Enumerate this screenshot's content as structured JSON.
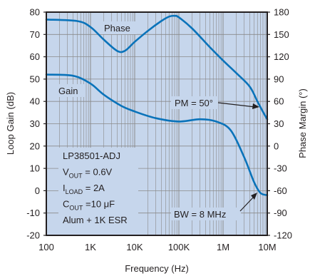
{
  "chart_data": {
    "type": "line",
    "xlabel": "Frequency (Hz)",
    "ylabel_left": "Loop Gain (dB)",
    "ylabel_right": "Phase Margin (°)",
    "x_scale": "log",
    "x_range": [
      100,
      10000000
    ],
    "y_left_range": [
      -20,
      80
    ],
    "y_right_range": [
      -120,
      180
    ],
    "x_ticks": [
      {
        "value": 100,
        "label": "100"
      },
      {
        "value": 1000,
        "label": "1K"
      },
      {
        "value": 10000,
        "label": "10K"
      },
      {
        "value": 100000,
        "label": "100K"
      },
      {
        "value": 1000000,
        "label": "1M"
      },
      {
        "value": 10000000,
        "label": "10M"
      }
    ],
    "y_left_ticks": [
      {
        "value": 80,
        "label": "80"
      },
      {
        "value": 70,
        "label": "70"
      },
      {
        "value": 60,
        "label": "60"
      },
      {
        "value": 50,
        "label": "50"
      },
      {
        "value": 40,
        "label": "40"
      },
      {
        "value": 30,
        "label": "30"
      },
      {
        "value": 20,
        "label": "20"
      },
      {
        "value": 10,
        "label": "10"
      },
      {
        "value": 0,
        "label": "0"
      },
      {
        "value": -10,
        "label": "-10"
      },
      {
        "value": -20,
        "label": "-20"
      }
    ],
    "y_right_ticks": [
      {
        "value": 180,
        "label": "180"
      },
      {
        "value": 150,
        "label": "150"
      },
      {
        "value": 120,
        "label": "120"
      },
      {
        "value": 90,
        "label": "90"
      },
      {
        "value": 60,
        "label": "60"
      },
      {
        "value": 30,
        "label": "30"
      },
      {
        "value": 0,
        "label": "0"
      },
      {
        "value": -30,
        "label": "-30"
      },
      {
        "value": -60,
        "label": "-60"
      },
      {
        "value": -90,
        "label": "-90"
      },
      {
        "value": -120,
        "label": "-120"
      }
    ],
    "grid": true,
    "series": [
      {
        "name": "Phase",
        "axis": "right",
        "color": "#0a73ba",
        "points": [
          {
            "x": 100,
            "y": 170
          },
          {
            "x": 500,
            "y": 168
          },
          {
            "x": 1000,
            "y": 160
          },
          {
            "x": 2000,
            "y": 143
          },
          {
            "x": 4000,
            "y": 128
          },
          {
            "x": 6000,
            "y": 128
          },
          {
            "x": 10000,
            "y": 140
          },
          {
            "x": 20000,
            "y": 155
          },
          {
            "x": 40000,
            "y": 168
          },
          {
            "x": 60000,
            "y": 174
          },
          {
            "x": 80000,
            "y": 175
          },
          {
            "x": 100000,
            "y": 173
          },
          {
            "x": 200000,
            "y": 158
          },
          {
            "x": 500000,
            "y": 133
          },
          {
            "x": 1000000,
            "y": 115
          },
          {
            "x": 2000000,
            "y": 98
          },
          {
            "x": 4000000,
            "y": 80
          },
          {
            "x": 6000000,
            "y": 60
          },
          {
            "x": 8000000,
            "y": 46
          },
          {
            "x": 10000000,
            "y": 36
          }
        ]
      },
      {
        "name": "Gain",
        "axis": "left",
        "color": "#0a73ba",
        "points": [
          {
            "x": 100,
            "y": 52
          },
          {
            "x": 400,
            "y": 51.5
          },
          {
            "x": 1000,
            "y": 48
          },
          {
            "x": 2000,
            "y": 43
          },
          {
            "x": 5000,
            "y": 38
          },
          {
            "x": 10000,
            "y": 35.5
          },
          {
            "x": 30000,
            "y": 32.5
          },
          {
            "x": 100000,
            "y": 31
          },
          {
            "x": 300000,
            "y": 32
          },
          {
            "x": 700000,
            "y": 31
          },
          {
            "x": 1500000,
            "y": 27
          },
          {
            "x": 3000000,
            "y": 15
          },
          {
            "x": 5000000,
            "y": 4
          },
          {
            "x": 7000000,
            "y": -1
          },
          {
            "x": 10000000,
            "y": -2
          }
        ]
      }
    ],
    "annotations": {
      "phase_label": "Phase",
      "gain_label": "Gain",
      "pm_label": "PM = 50°",
      "bw_label": "BW = 8 MHz",
      "conditions": [
        {
          "main": "LP38501-ADJ",
          "sub": "",
          "tail": ""
        },
        {
          "main": "V",
          "sub": "OUT",
          "tail": " = 0.6V"
        },
        {
          "main": "I",
          "sub": "LOAD",
          "tail": " = 2A"
        },
        {
          "main": "C",
          "sub": "OUT",
          "tail": " =10 μF"
        },
        {
          "main": "Alum + 1K ESR",
          "sub": "",
          "tail": ""
        }
      ]
    },
    "colors": {
      "plot_background": "#c6d6ec",
      "grid": "#8a8a8a",
      "frame": "#231f20",
      "line": "#0a73ba"
    }
  }
}
